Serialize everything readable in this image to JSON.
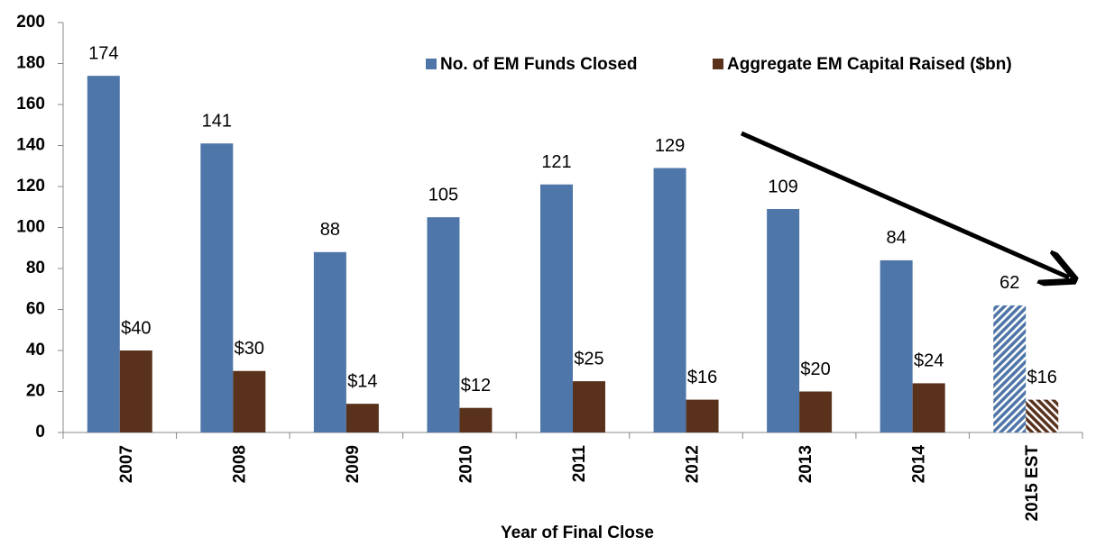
{
  "chart_data": {
    "type": "bar",
    "x_label": "Year of Final Close",
    "categories": [
      "2007",
      "2008",
      "2009",
      "2010",
      "2011",
      "2012",
      "2013",
      "2014",
      "2015 EST"
    ],
    "series": [
      {
        "name": "No. of EM Funds Closed",
        "color": "#4f76a8",
        "values": [
          174,
          141,
          88,
          105,
          121,
          129,
          109,
          84,
          62
        ]
      },
      {
        "name": "Aggregate EM Capital Raised ($bn)",
        "color": "#5a321c",
        "values": [
          40,
          30,
          14,
          12,
          25,
          16,
          20,
          24,
          16
        ],
        "value_labels": [
          "$40",
          "$30",
          "$14",
          "$12",
          "$25",
          "$16",
          "$20",
          "$24",
          "$16"
        ]
      }
    ],
    "ylim": [
      0,
      200
    ],
    "yticks": [
      0,
      20,
      40,
      60,
      80,
      100,
      120,
      140,
      160,
      180,
      200
    ]
  }
}
